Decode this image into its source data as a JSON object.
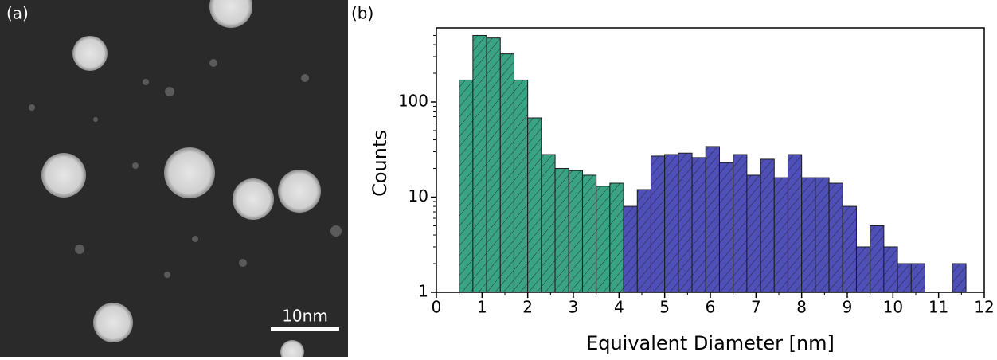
{
  "image": {
    "label": "(a)",
    "scale_bar": "10nm"
  },
  "chart_data": {
    "type": "histogram",
    "title": "(b)",
    "xlabel": "Equivalent Diameter [nm]",
    "ylabel": "Counts",
    "xlim": [
      0,
      12
    ],
    "xticks": [
      0,
      1,
      2,
      3,
      4,
      5,
      6,
      7,
      8,
      9,
      10,
      11,
      12
    ],
    "ylim": [
      1,
      600
    ],
    "yticks": [
      1,
      10,
      100
    ],
    "yscale": "log",
    "series": [
      {
        "color": "#3aa384",
        "bins": [
          0.5,
          0.8,
          1.1,
          1.4,
          1.7,
          2.0,
          2.3,
          2.6,
          2.9,
          3.2,
          3.5,
          3.8,
          4.1
        ],
        "counts": [
          170,
          500,
          470,
          320,
          170,
          68,
          28,
          20,
          19,
          17,
          13,
          14
        ]
      },
      {
        "color": "#4f4fb8",
        "bins": [
          4.1,
          4.4,
          4.7,
          5.0,
          5.3,
          5.6,
          5.9,
          6.2,
          6.5,
          6.8,
          7.1,
          7.4,
          7.7,
          8.0,
          8.3,
          8.6,
          8.9,
          9.2,
          9.5,
          9.8,
          10.1,
          10.4,
          10.7,
          11.0,
          11.3,
          11.6
        ],
        "counts": [
          8,
          12,
          27,
          28,
          29,
          26,
          34,
          23,
          28,
          17,
          25,
          16,
          28,
          16,
          16,
          14,
          8,
          3,
          5,
          3,
          2,
          2,
          0,
          0,
          2
        ]
      }
    ]
  }
}
